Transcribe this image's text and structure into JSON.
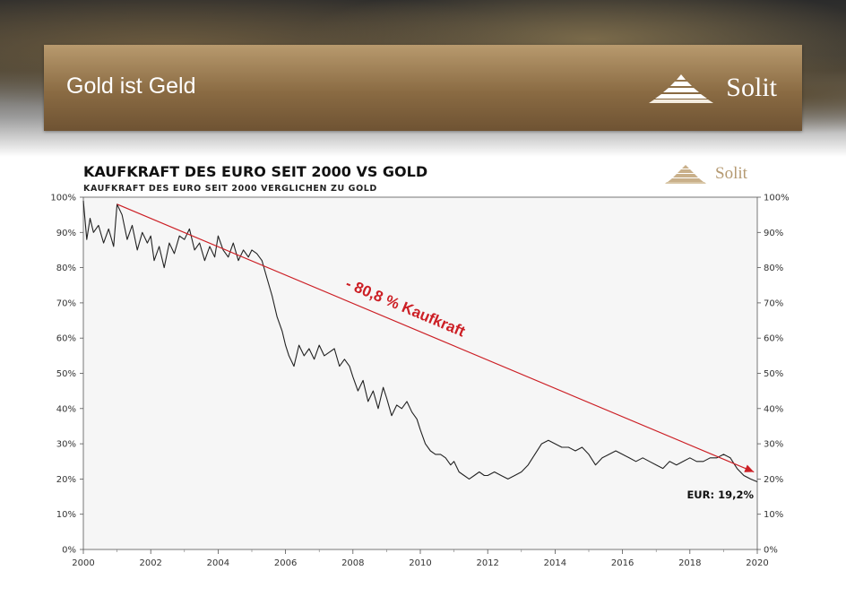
{
  "banner": {
    "title": "Gold ist Geld",
    "brand": "Solit",
    "color": "#8a6b43"
  },
  "chart_header": {
    "title": "KAUFKRAFT DES EURO SEIT 2000 VS GOLD",
    "subtitle": "KAUFKRAFT DES EURO SEIT 2000 VERGLICHEN ZU GOLD",
    "brand": "Solit"
  },
  "chart_data": {
    "type": "line",
    "title": "KAUFKRAFT DES EURO SEIT 2000 VS GOLD",
    "subtitle": "KAUFKRAFT DES EURO SEIT 2000 VERGLICHEN ZU GOLD",
    "xlabel": "",
    "ylabel": "",
    "xlim": [
      2000,
      2020
    ],
    "ylim": [
      0,
      100
    ],
    "x_ticks": [
      "2000",
      "2002",
      "2004",
      "2006",
      "2008",
      "2010",
      "2012",
      "2014",
      "2016",
      "2018",
      "2020"
    ],
    "y_ticks": [
      "0%",
      "10%",
      "20%",
      "30%",
      "40%",
      "50%",
      "60%",
      "70%",
      "80%",
      "90%",
      "100%"
    ],
    "grid": false,
    "series": [
      {
        "color": "#222222",
        "x": [
          2000.0,
          2000.1,
          2000.2,
          2000.3,
          2000.45,
          2000.6,
          2000.75,
          2000.9,
          2001.0,
          2001.15,
          2001.3,
          2001.45,
          2001.6,
          2001.75,
          2001.9,
          2002.0,
          2002.1,
          2002.25,
          2002.4,
          2002.55,
          2002.7,
          2002.85,
          2003.0,
          2003.15,
          2003.3,
          2003.45,
          2003.6,
          2003.75,
          2003.9,
          2004.0,
          2004.15,
          2004.3,
          2004.45,
          2004.6,
          2004.75,
          2004.9,
          2005.0,
          2005.15,
          2005.3,
          2005.45,
          2005.6,
          2005.75,
          2005.9,
          2006.0,
          2006.1,
          2006.25,
          2006.4,
          2006.55,
          2006.7,
          2006.85,
          2007.0,
          2007.15,
          2007.3,
          2007.45,
          2007.6,
          2007.75,
          2007.9,
          2008.0,
          2008.15,
          2008.3,
          2008.45,
          2008.6,
          2008.75,
          2008.9,
          2009.0,
          2009.15,
          2009.3,
          2009.45,
          2009.6,
          2009.75,
          2009.9,
          2010.0,
          2010.15,
          2010.3,
          2010.45,
          2010.6,
          2010.75,
          2010.9,
          2011.0,
          2011.15,
          2011.3,
          2011.45,
          2011.6,
          2011.75,
          2011.9,
          2012.0,
          2012.2,
          2012.4,
          2012.6,
          2012.8,
          2013.0,
          2013.2,
          2013.4,
          2013.6,
          2013.8,
          2014.0,
          2014.2,
          2014.4,
          2014.6,
          2014.8,
          2015.0,
          2015.2,
          2015.4,
          2015.6,
          2015.8,
          2016.0,
          2016.2,
          2016.4,
          2016.6,
          2016.8,
          2017.0,
          2017.2,
          2017.4,
          2017.6,
          2017.8,
          2018.0,
          2018.2,
          2018.4,
          2018.6,
          2018.8,
          2019.0,
          2019.2,
          2019.4,
          2019.6,
          2019.8,
          2020.0
        ],
        "y": [
          99,
          88,
          94,
          90,
          92,
          87,
          91,
          86,
          98,
          95,
          88,
          92,
          85,
          90,
          87,
          89,
          82,
          86,
          80,
          87,
          84,
          89,
          88,
          91,
          85,
          87,
          82,
          86,
          83,
          89,
          85,
          83,
          87,
          82,
          85,
          83,
          85,
          84,
          82,
          77,
          72,
          66,
          62,
          58,
          55,
          52,
          58,
          55,
          57,
          54,
          58,
          55,
          56,
          57,
          52,
          54,
          52,
          49,
          45,
          48,
          42,
          45,
          40,
          46,
          43,
          38,
          41,
          40,
          42,
          39,
          37,
          34,
          30,
          28,
          27,
          27,
          26,
          24,
          25,
          22,
          21,
          20,
          21,
          22,
          21,
          21,
          22,
          21,
          20,
          21,
          22,
          24,
          27,
          30,
          31,
          30,
          29,
          29,
          28,
          29,
          27,
          24,
          26,
          27,
          28,
          27,
          26,
          25,
          26,
          25,
          24,
          23,
          25,
          24,
          25,
          26,
          25,
          25,
          26,
          26,
          27,
          26,
          23,
          21,
          20,
          19.2
        ]
      }
    ],
    "annotations": [
      {
        "text": "- 80,8 % Kaufkraft",
        "color": "#cc1f25",
        "from": [
          2001.0,
          98
        ],
        "to": [
          2019.9,
          22
        ]
      },
      {
        "text": "EUR: 19,2%"
      }
    ]
  }
}
